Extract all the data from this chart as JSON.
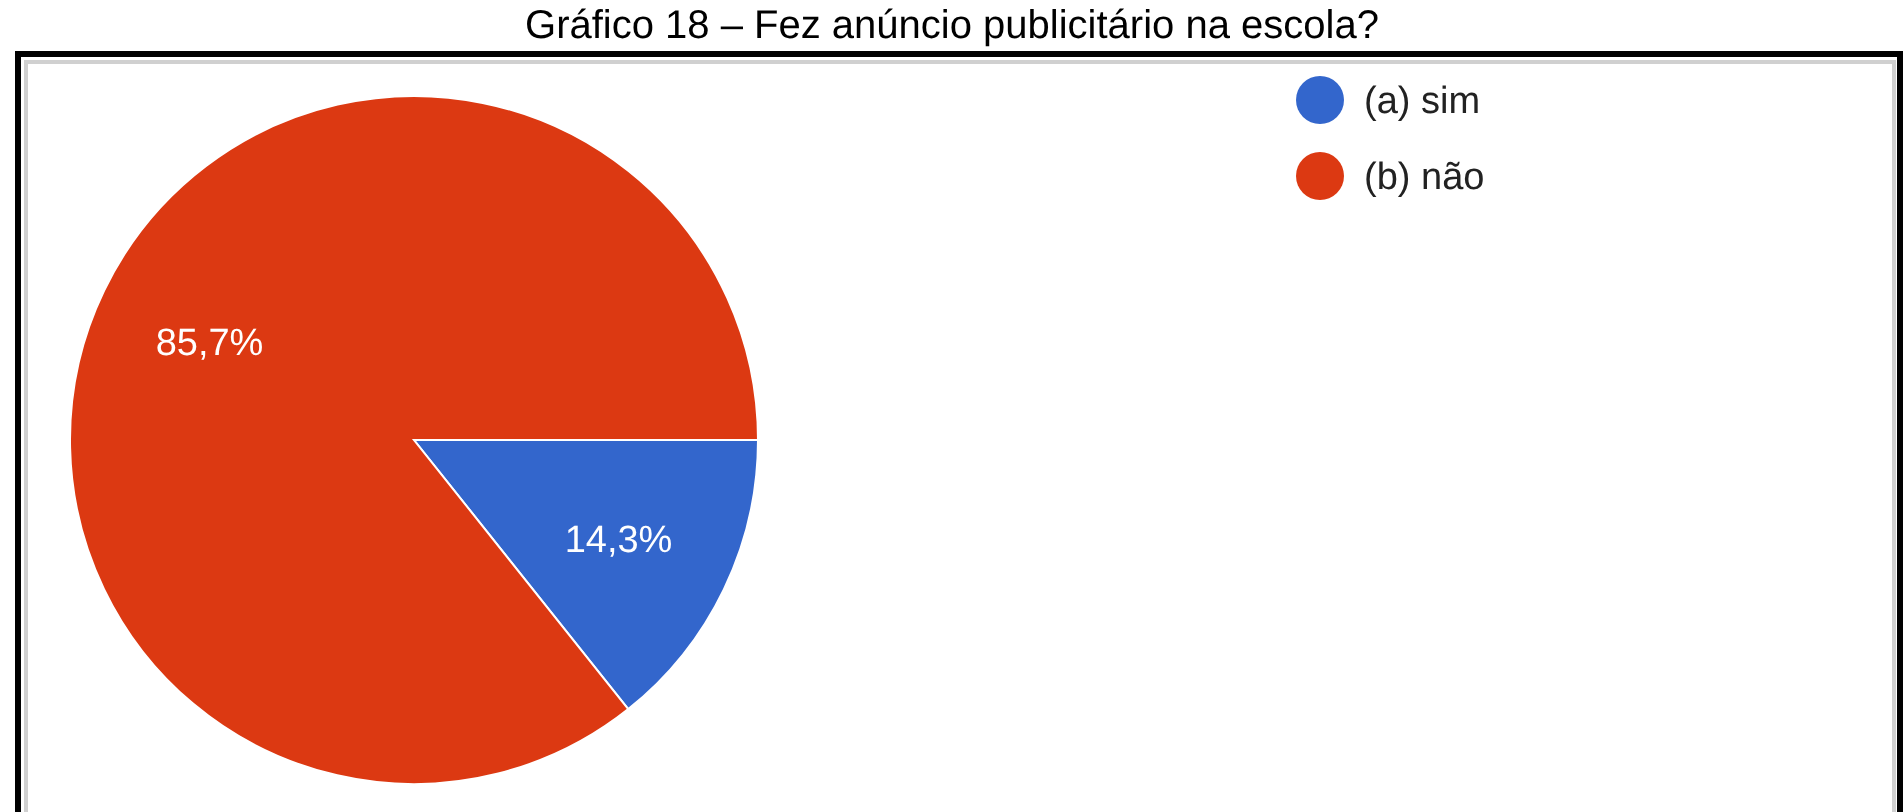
{
  "chart_data": {
    "type": "pie",
    "title": "Gráfico 18 – Fez anúncio publicitário na escola?",
    "categories": [
      "(a) sim",
      "(b) não"
    ],
    "values": [
      14.3,
      85.7
    ],
    "colors": [
      "#3366cc",
      "#dc3912"
    ],
    "value_labels": [
      "14,3%",
      "85,7%"
    ],
    "legend": "top right"
  }
}
